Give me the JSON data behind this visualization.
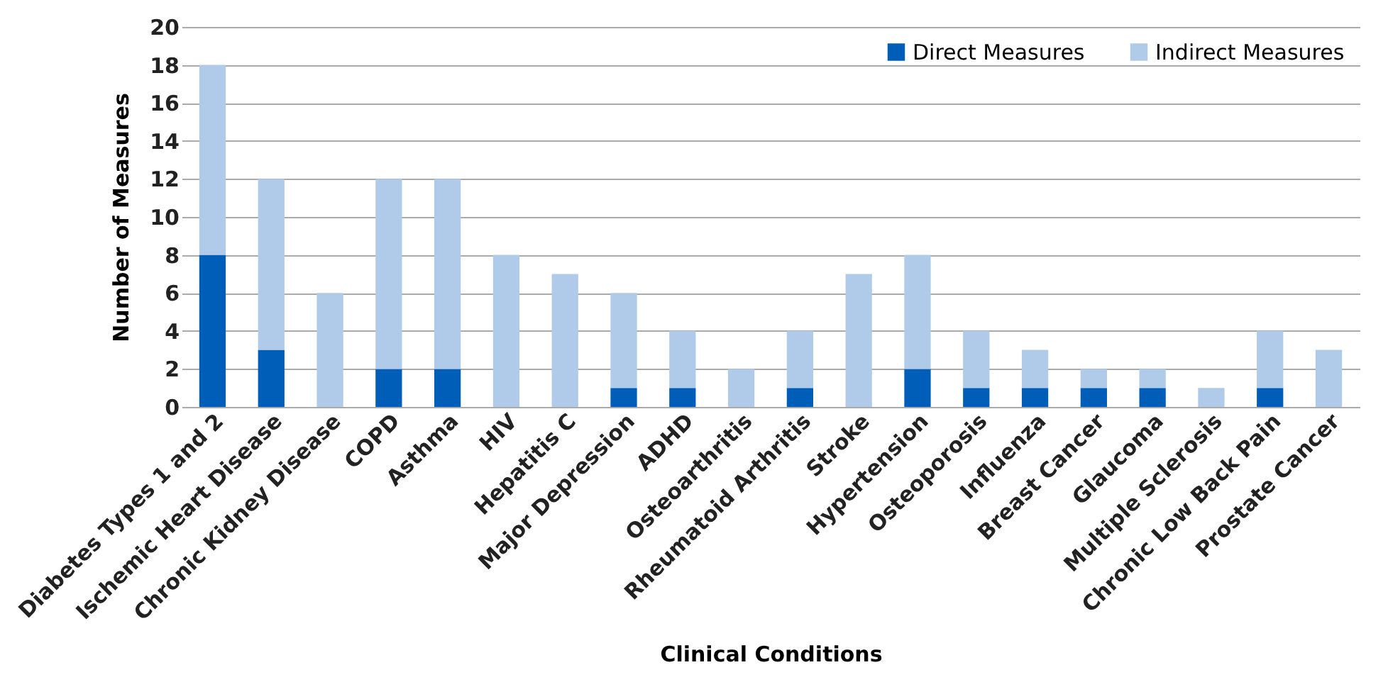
{
  "chart_data": {
    "type": "bar",
    "stacked": true,
    "xlabel": "Clinical Conditions",
    "ylabel": "Number of Measures",
    "categories": [
      "Diabetes Types 1 and 2",
      "Ischemic Heart Disease",
      "Chronic Kidney Disease",
      "COPD",
      "Asthma",
      "HIV",
      "Hepatitis C",
      "Major Depression",
      "ADHD",
      "Osteoarthritis",
      "Rheumatoid Arthritis",
      "Stroke",
      "Hypertension",
      "Osteoporosis",
      "Influenza",
      "Breast Cancer",
      "Glaucoma",
      "Multiple Sclerosis",
      "Chronic Low Back Pain",
      "Prostate Cancer"
    ],
    "series": [
      {
        "name": "Direct Measures",
        "color": "#005eb8",
        "values": [
          8,
          3,
          0,
          2,
          2,
          0,
          0,
          1,
          1,
          0,
          1,
          0,
          2,
          1,
          1,
          1,
          1,
          0,
          1,
          0
        ]
      },
      {
        "name": "Indirect Measures",
        "color": "#b0cbea",
        "values": [
          10,
          9,
          6,
          10,
          10,
          8,
          7,
          5,
          3,
          2,
          3,
          7,
          6,
          3,
          2,
          1,
          1,
          1,
          3,
          3
        ]
      }
    ],
    "ylim": [
      0,
      20
    ],
    "yticks": [
      0,
      2,
      4,
      6,
      8,
      10,
      12,
      14,
      16,
      18,
      20
    ],
    "grid": "y",
    "legend": "top right"
  }
}
